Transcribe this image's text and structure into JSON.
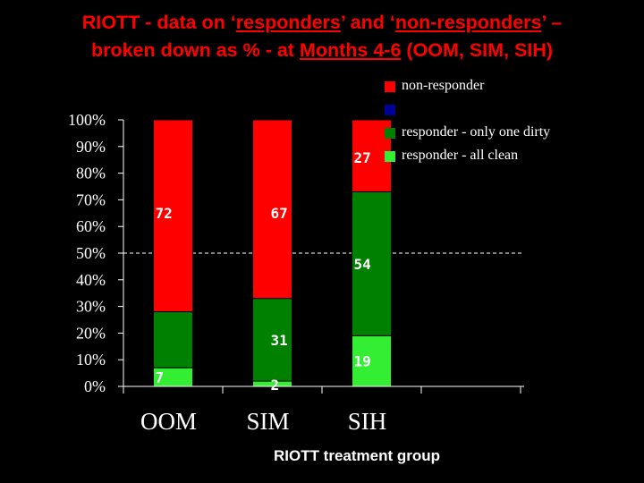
{
  "title": {
    "line1_before": "RIOTT - data on ‘",
    "line1_u1": "responders",
    "line1_mid": "’ and ‘",
    "line1_u2": "non-responders",
    "line1_after": "’ –",
    "line2_before": "broken down as % - at ",
    "line2_u": "Months 4-6",
    "line2_after": " (OOM, SIM, SIH)"
  },
  "chart_data": {
    "type": "bar",
    "stacked": true,
    "categories": [
      "OOM",
      "SIM",
      "SIH"
    ],
    "series": [
      {
        "name": "responder - all clean",
        "color": "#33ee33",
        "values": [
          7,
          2,
          19
        ],
        "labels": [
          "7",
          "2",
          "19"
        ]
      },
      {
        "name": "responder - only one dirty",
        "color": "#008000",
        "values": [
          21,
          31,
          54
        ],
        "labels": [
          "",
          "31",
          "54"
        ]
      },
      {
        "name": "",
        "color": "#000099",
        "values": [
          0,
          0,
          0
        ],
        "labels": [
          "",
          "",
          ""
        ]
      },
      {
        "name": "non-responder",
        "color": "#ff0000",
        "values": [
          72,
          67,
          27
        ],
        "labels": [
          "72",
          "67",
          "27"
        ]
      }
    ],
    "ylim": [
      0,
      100
    ],
    "yticks": [
      "0%",
      "10%",
      "20%",
      "30%",
      "40%",
      "50%",
      "60%",
      "70%",
      "80%",
      "90%",
      "100%"
    ],
    "reference_line": 50,
    "xlabel": "RIOTT treatment group",
    "ylabel": "",
    "legend_position": "top-right"
  },
  "colors": {
    "background": "#000000",
    "title": "#ff0000",
    "axis": "#ffffff",
    "data_label": "#ffffff"
  }
}
